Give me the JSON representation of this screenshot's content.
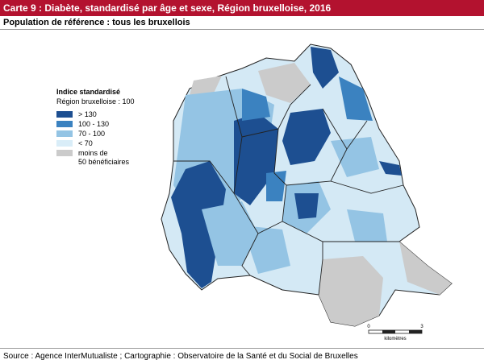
{
  "header": {
    "title": "Carte 9 : Diabète, standardisé par âge et sexe, Région bruxelloise, 2016",
    "subtitle": "Population de référence : tous les bruxellois"
  },
  "legend": {
    "title": "Indice standardisé",
    "subtitle": "Région bruxelloise : 100",
    "items": [
      {
        "label": "> 130",
        "color": "#1d4f91"
      },
      {
        "label": "100 - 130",
        "color": "#3b82c0"
      },
      {
        "label": "70 - 100",
        "color": "#94c4e4"
      },
      {
        "label": "< 70",
        "color": "#d9edf8"
      },
      {
        "label": "moins de\n50 bénéficiaires",
        "color": "#cbcbcb"
      }
    ]
  },
  "scale": {
    "labels": [
      "0",
      "3"
    ],
    "unit": "kilomètres"
  },
  "footer": {
    "source": "Source : Agence InterMutualiste ; Cartographie : Observatoire de la Santé et du Social de Bruxelles"
  }
}
